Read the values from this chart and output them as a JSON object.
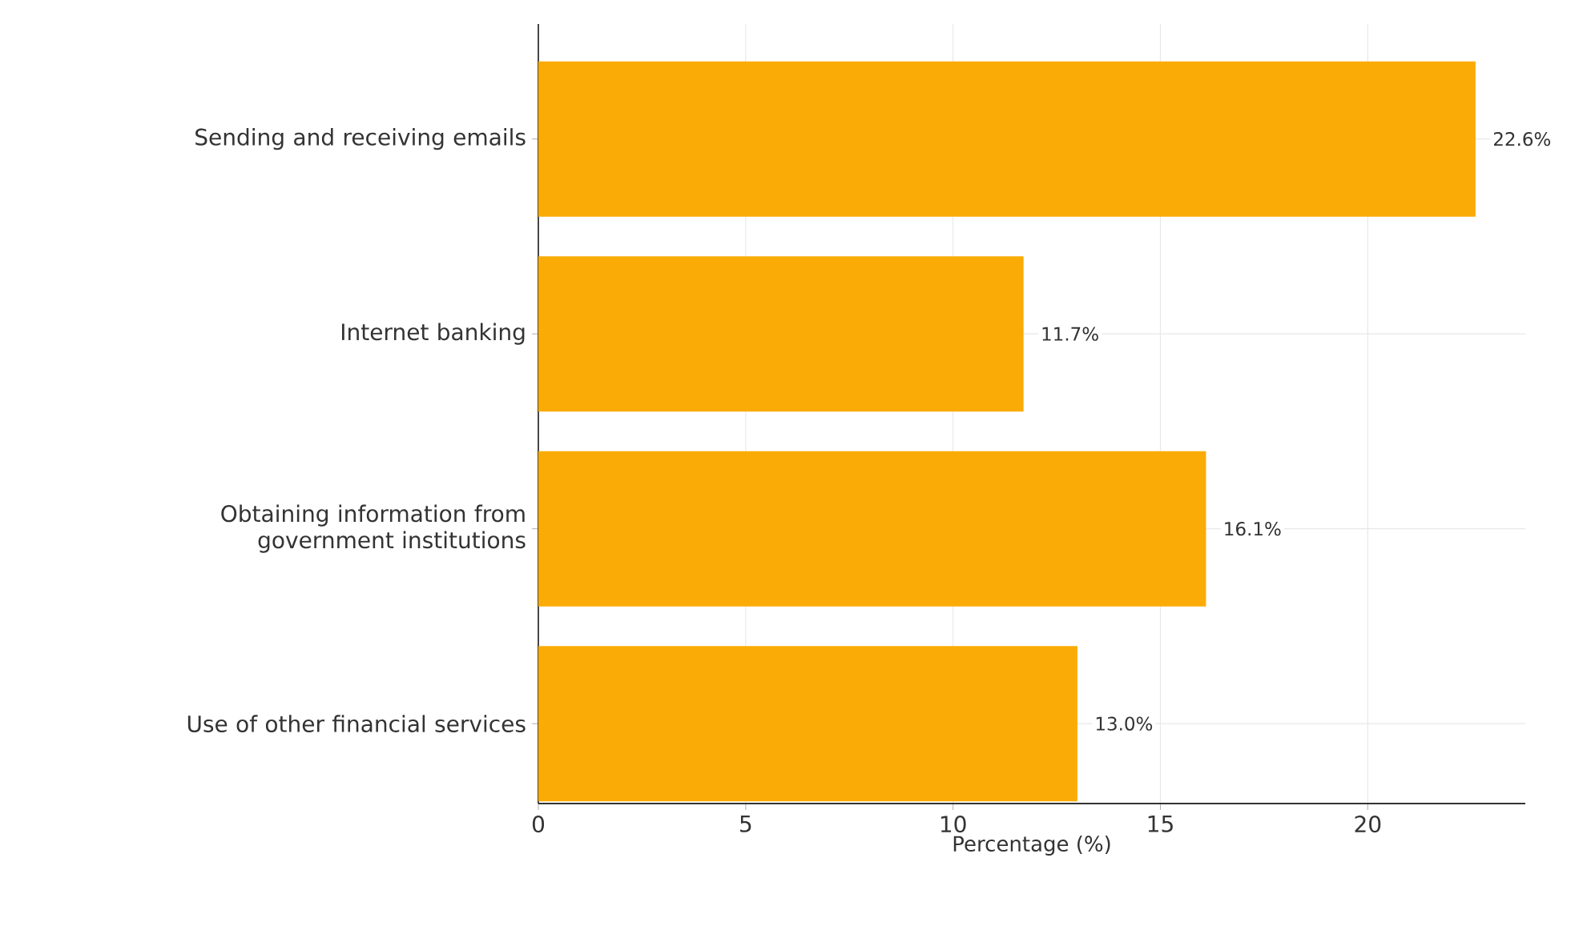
{
  "chart_data": {
    "type": "bar",
    "orientation": "horizontal",
    "xlabel": "Percentage (%)",
    "categories": [
      "Sending and receiving emails",
      "Internet banking",
      "Obtaining information from government institutions",
      "Use of other financial services"
    ],
    "values": [
      22.6,
      11.7,
      16.1,
      13.0
    ],
    "value_labels": [
      "22.6%",
      "11.7%",
      "16.1%",
      "13.0%"
    ],
    "color": "#fbab05",
    "xlim": [
      0,
      23.8
    ],
    "xticks": [
      0,
      5,
      10,
      15,
      20
    ],
    "grid": true
  }
}
